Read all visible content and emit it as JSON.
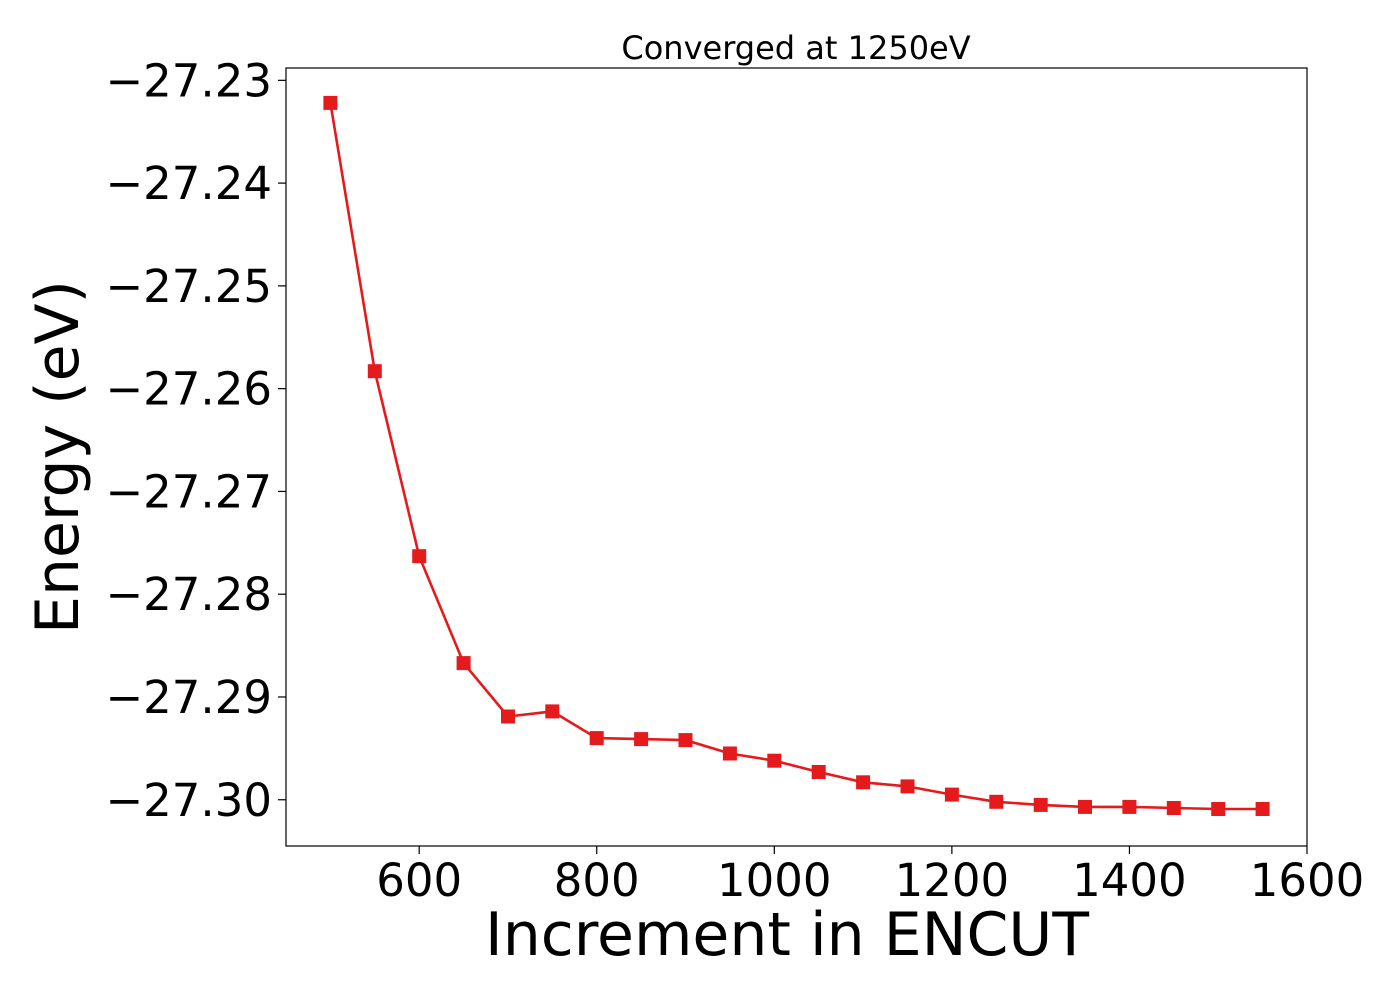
{
  "chart_data": {
    "type": "line",
    "title": "Converged at 1250eV",
    "xlabel": "Increment in ENCUT",
    "ylabel": "Energy (eV)",
    "xlim": [
      450,
      1600
    ],
    "ylim": [
      -27.3045,
      -27.2288
    ],
    "x_ticks": [
      600,
      800,
      1000,
      1200,
      1400,
      1600
    ],
    "y_ticks": [
      -27.23,
      -27.24,
      -27.25,
      -27.26,
      -27.27,
      -27.28,
      -27.29,
      -27.3
    ],
    "x_tick_labels": [
      "600",
      "800",
      "1000",
      "1200",
      "1400",
      "1600"
    ],
    "y_tick_labels": [
      "−27.23",
      "−27.24",
      "−27.25",
      "−27.26",
      "−27.27",
      "−27.28",
      "−27.29",
      "−27.30"
    ],
    "grid": false,
    "series": [
      {
        "color": "#e41a1c",
        "marker": "square",
        "x": [
          500,
          550,
          600,
          650,
          700,
          750,
          800,
          850,
          900,
          950,
          1000,
          1050,
          1100,
          1150,
          1200,
          1250,
          1300,
          1350,
          1400,
          1450,
          1500,
          1550
        ],
        "y": [
          -27.2322,
          -27.2583,
          -27.2763,
          -27.2867,
          -27.2919,
          -27.2914,
          -27.294,
          -27.2941,
          -27.2942,
          -27.2955,
          -27.2962,
          -27.2973,
          -27.2983,
          -27.2987,
          -27.2995,
          -27.3002,
          -27.3005,
          -27.3007,
          -27.3007,
          -27.3008,
          -27.3009,
          -27.3009
        ]
      }
    ]
  }
}
